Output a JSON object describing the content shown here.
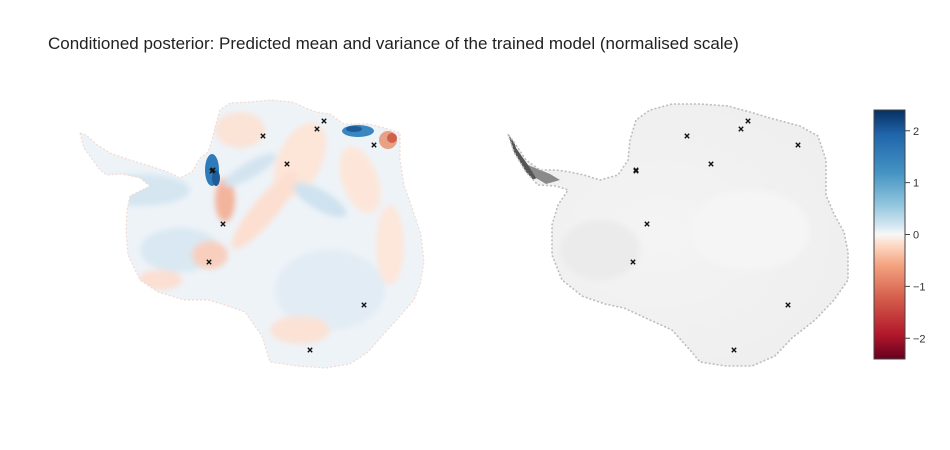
{
  "title": "Conditioned posterior: Predicted mean and variance of the trained model (normalised scale)",
  "colors": {
    "diverging": [
      "#67001f",
      "#b2182b",
      "#d6604d",
      "#f4a582",
      "#fddbc7",
      "#f7f7f7",
      "#d1e5f0",
      "#92c5de",
      "#4393c3",
      "#2166ac",
      "#053061"
    ]
  },
  "chart_data": [
    {
      "type": "heatmap",
      "panel": "mean",
      "colorscale": "RdBu",
      "zlim": [
        -2.4,
        2.4
      ],
      "observation_marker": "x",
      "observation_count": 11
    },
    {
      "type": "heatmap",
      "panel": "variance",
      "colorscale": "greys",
      "observation_marker": "x",
      "observation_count": 11
    }
  ],
  "colorbar": {
    "ticks": [
      {
        "value": 2,
        "label": "2"
      },
      {
        "value": 1,
        "label": "1"
      },
      {
        "value": 0,
        "label": "0"
      },
      {
        "value": -1,
        "label": "−1"
      },
      {
        "value": -2,
        "label": "−2"
      }
    ],
    "zlim": [
      -2.4,
      2.4
    ]
  }
}
